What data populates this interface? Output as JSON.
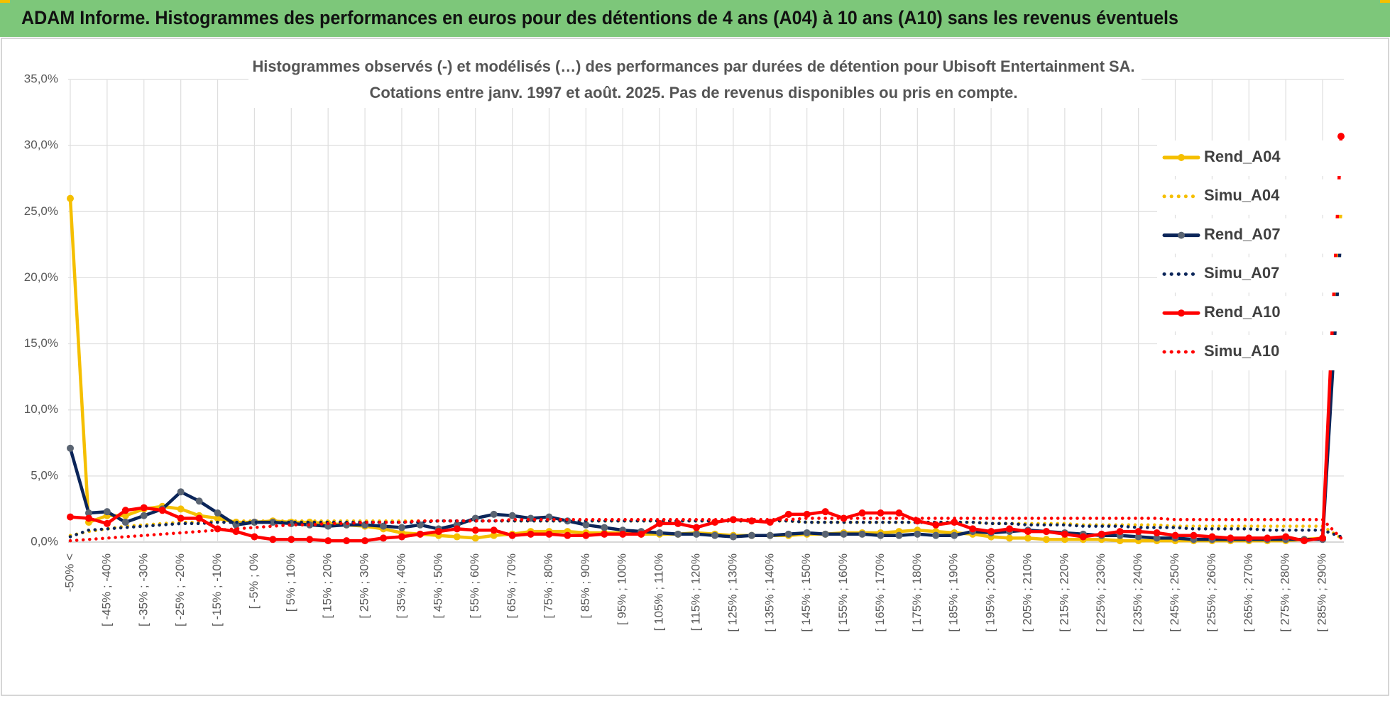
{
  "header": {
    "title": "ADAM Informe. Histogrammes des performances en euros pour des détentions de 4 ans (A04) à 10 ans (A10) sans les revenus éventuels"
  },
  "chart_data": {
    "type": "line",
    "title": "Histogrammes observés (-) et modélisés (…) des performances par durées de détention pour Ubisoft Entertainment SA.",
    "subtitle": "Cotations entre janv. 1997 et août. 2025. Pas de revenus disponibles ou pris en compte.",
    "categories": [
      "-50% <",
      null,
      "[ -45% ; -40%",
      null,
      "[ -35% ; -30%",
      null,
      "[ -25% ; -20%",
      null,
      "[ -15% ; -10%",
      null,
      "[ -5% ; 0%",
      null,
      "[ 5% ; 10%",
      null,
      "[ 15% ; 20%",
      null,
      "[ 25% ; 30%",
      null,
      "[ 35% ; 40%",
      null,
      "[ 45% ; 50%",
      null,
      "[ 55% ; 60%",
      null,
      "[ 65% ; 70%",
      null,
      "[ 75% ; 80%",
      null,
      "[ 85% ; 90%",
      null,
      "[ 95% ; 100%",
      null,
      "[ 105% ; 110%",
      null,
      "[ 115% ; 120%",
      null,
      "[ 125% ; 130%",
      null,
      "[ 135% ; 140%",
      null,
      "[ 145% ; 150%",
      null,
      "[ 155% ; 160%",
      null,
      "[ 165% ; 170%",
      null,
      "[ 175% ; 180%",
      null,
      "[ 185% ; 190%",
      null,
      "[ 195% ; 200%",
      null,
      "[ 205% ; 210%",
      null,
      "[ 215% ; 220%",
      null,
      "[ 225% ; 230%",
      null,
      "[ 235% ; 240%",
      null,
      "[ 245% ; 250%",
      null,
      "[ 255% ; 260%",
      null,
      "[ 265% ; 270%",
      null,
      "[ 275% ; 280%",
      null,
      "[ 285% ; 290%",
      null
    ],
    "series": [
      {
        "name": "Rend_A04",
        "color": "#f5bf00",
        "marker_color": "#f5bf00",
        "line_style": "solid",
        "marker": true,
        "values": [
          26,
          1.5,
          2.0,
          2.0,
          2.5,
          2.7,
          2.5,
          2.0,
          1.8,
          1.5,
          1.5,
          1.6,
          1.5,
          1.5,
          1.4,
          1.3,
          1.2,
          1.0,
          0.7,
          0.6,
          0.5,
          0.4,
          0.3,
          0.5,
          0.6,
          0.8,
          0.8,
          0.8,
          0.7,
          0.7,
          0.7,
          0.6,
          0.6,
          0.6,
          0.7,
          0.6,
          0.5,
          0.5,
          0.5,
          0.5,
          0.6,
          0.6,
          0.7,
          0.7,
          0.7,
          0.8,
          0.9,
          0.8,
          0.7,
          0.6,
          0.4,
          0.3,
          0.3,
          0.2,
          0.2,
          0.2,
          0.2,
          0.1,
          0.1,
          0.1,
          0.1,
          0.1,
          0.1,
          0.1,
          0.1,
          0.1,
          0.1,
          0.2,
          0.3,
          25.3
        ]
      },
      {
        "name": "Simu_A04",
        "color": "#f5bf00",
        "line_style": "dotted",
        "marker": false,
        "values": [
          0.5,
          0.8,
          1.0,
          1.2,
          1.3,
          1.4,
          1.5,
          1.5,
          1.6,
          1.6,
          1.6,
          1.6,
          1.6,
          1.6,
          1.6,
          1.6,
          1.6,
          1.6,
          1.6,
          1.6,
          1.6,
          1.6,
          1.6,
          1.6,
          1.6,
          1.6,
          1.6,
          1.6,
          1.6,
          1.6,
          1.6,
          1.6,
          1.6,
          1.6,
          1.6,
          1.6,
          1.6,
          1.6,
          1.6,
          1.6,
          1.5,
          1.5,
          1.5,
          1.5,
          1.5,
          1.5,
          1.5,
          1.5,
          1.5,
          1.5,
          1.4,
          1.4,
          1.4,
          1.4,
          1.4,
          1.3,
          1.3,
          1.3,
          1.3,
          1.3,
          1.2,
          1.2,
          1.2,
          1.2,
          1.2,
          1.2,
          1.2,
          1.2,
          1.2,
          0.3
        ]
      },
      {
        "name": "Rend_A07",
        "color": "#0b2559",
        "marker_color": "#5a6472",
        "line_style": "solid",
        "marker": true,
        "values": [
          7.1,
          2.2,
          2.3,
          1.5,
          2.0,
          2.5,
          3.8,
          3.1,
          2.2,
          1.3,
          1.5,
          1.5,
          1.4,
          1.3,
          1.2,
          1.3,
          1.3,
          1.2,
          1.1,
          1.3,
          1.0,
          1.3,
          1.8,
          2.1,
          2.0,
          1.8,
          1.9,
          1.6,
          1.3,
          1.1,
          0.9,
          0.8,
          0.7,
          0.6,
          0.6,
          0.5,
          0.4,
          0.5,
          0.5,
          0.6,
          0.7,
          0.6,
          0.6,
          0.6,
          0.5,
          0.5,
          0.6,
          0.5,
          0.5,
          0.8,
          0.7,
          0.8,
          0.9,
          0.8,
          0.7,
          0.6,
          0.5,
          0.5,
          0.4,
          0.3,
          0.3,
          0.2,
          0.2,
          0.2,
          0.2,
          0.2,
          0.2,
          0.2,
          0.2,
          23.5
        ]
      },
      {
        "name": "Simu_A07",
        "color": "#0b2559",
        "line_style": "dotted",
        "marker": false,
        "values": [
          0.4,
          0.9,
          1.0,
          1.1,
          1.2,
          1.3,
          1.4,
          1.4,
          1.5,
          1.5,
          1.5,
          1.5,
          1.5,
          1.5,
          1.5,
          1.5,
          1.5,
          1.5,
          1.5,
          1.5,
          1.6,
          1.6,
          1.6,
          1.6,
          1.6,
          1.6,
          1.6,
          1.6,
          1.6,
          1.6,
          1.6,
          1.6,
          1.6,
          1.6,
          1.6,
          1.6,
          1.6,
          1.6,
          1.6,
          1.6,
          1.5,
          1.5,
          1.5,
          1.5,
          1.5,
          1.5,
          1.5,
          1.5,
          1.5,
          1.5,
          1.4,
          1.4,
          1.3,
          1.3,
          1.3,
          1.2,
          1.2,
          1.2,
          1.1,
          1.1,
          1.1,
          1.0,
          1.0,
          1.0,
          1.0,
          0.9,
          0.9,
          0.9,
          0.9,
          0.4
        ]
      },
      {
        "name": "Rend_A10",
        "color": "#ff0000",
        "marker_color": "#ff0000",
        "line_style": "solid",
        "marker": true,
        "values": [
          1.9,
          1.8,
          1.4,
          2.4,
          2.6,
          2.4,
          1.8,
          1.8,
          1.0,
          0.8,
          0.4,
          0.2,
          0.2,
          0.2,
          0.1,
          0.1,
          0.1,
          0.3,
          0.4,
          0.6,
          0.8,
          1.0,
          0.9,
          0.9,
          0.5,
          0.6,
          0.6,
          0.5,
          0.5,
          0.6,
          0.6,
          0.6,
          1.4,
          1.4,
          1.1,
          1.5,
          1.7,
          1.6,
          1.5,
          2.1,
          2.1,
          2.3,
          1.8,
          2.2,
          2.2,
          2.2,
          1.6,
          1.3,
          1.5,
          1.0,
          0.8,
          1.0,
          0.8,
          0.8,
          0.6,
          0.4,
          0.6,
          0.8,
          0.8,
          0.7,
          0.5,
          0.5,
          0.4,
          0.3,
          0.3,
          0.3,
          0.4,
          0.1,
          0.3,
          30.7
        ]
      },
      {
        "name": "Simu_A10",
        "color": "#ff0000",
        "line_style": "dotted",
        "marker": false,
        "values": [
          0.1,
          0.2,
          0.3,
          0.4,
          0.5,
          0.6,
          0.7,
          0.8,
          0.9,
          1.0,
          1.1,
          1.2,
          1.3,
          1.3,
          1.4,
          1.4,
          1.5,
          1.5,
          1.5,
          1.6,
          1.6,
          1.6,
          1.6,
          1.6,
          1.7,
          1.7,
          1.7,
          1.7,
          1.7,
          1.7,
          1.7,
          1.7,
          1.7,
          1.7,
          1.7,
          1.7,
          1.7,
          1.7,
          1.7,
          1.7,
          1.8,
          1.8,
          1.8,
          1.8,
          1.8,
          1.8,
          1.8,
          1.8,
          1.8,
          1.8,
          1.8,
          1.8,
          1.8,
          1.8,
          1.8,
          1.8,
          1.8,
          1.8,
          1.8,
          1.8,
          1.7,
          1.7,
          1.7,
          1.7,
          1.7,
          1.7,
          1.7,
          1.7,
          1.7,
          0.3
        ]
      }
    ],
    "ylim": [
      0,
      35
    ],
    "yticks": [
      {
        "value": 0,
        "label": "0,0%"
      },
      {
        "value": 5,
        "label": "5,0%"
      },
      {
        "value": 10,
        "label": "10,0%"
      },
      {
        "value": 15,
        "label": "15,0%"
      },
      {
        "value": 20,
        "label": "20,0%"
      },
      {
        "value": 25,
        "label": "25,0%"
      },
      {
        "value": 30,
        "label": "30,0%"
      },
      {
        "value": 35,
        "label": "35,0%"
      }
    ],
    "grid": true,
    "legend": "right"
  }
}
